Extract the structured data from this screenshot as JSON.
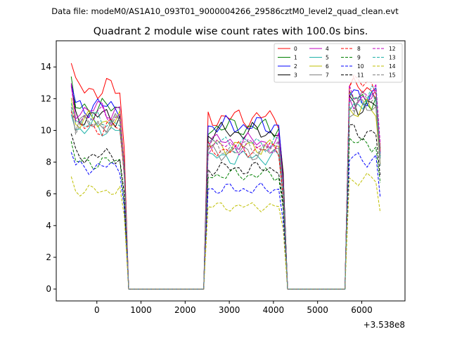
{
  "header": {
    "file_label": "Data file: modeM0/AS1A10_093T01_9000004266_29586cztM0_level2_quad_clean.evt"
  },
  "chart_data": {
    "type": "line",
    "title": "Quadrant 2 module wise count rates with 100.0s bins.",
    "xlabel": "",
    "ylabel": "",
    "x_offset_label": "+3.538e8",
    "xlim": [
      -920,
      6980
    ],
    "ylim": [
      -0.75,
      15.65
    ],
    "x_ticks": [
      0,
      1000,
      2000,
      3000,
      4000,
      5000,
      6000
    ],
    "y_ticks": [
      0,
      2,
      4,
      6,
      8,
      10,
      12,
      14
    ],
    "x_tick_labels": [
      "0",
      "1000",
      "2000",
      "3000",
      "4000",
      "5000",
      "6000"
    ],
    "y_tick_labels": [
      "0",
      "2",
      "4",
      "6",
      "8",
      "10",
      "12",
      "14"
    ],
    "grid": false,
    "legend_position": "top-right",
    "segments": [
      {
        "start": -580,
        "end": 620
      },
      {
        "start": 2450,
        "end": 4250
      },
      {
        "start": 5640,
        "end": 6440
      }
    ],
    "series": [
      {
        "name": "0",
        "color": "#ff0000",
        "dash": "solid",
        "levels": [
          12.6,
          10.8,
          12.6
        ]
      },
      {
        "name": "1",
        "color": "#008000",
        "dash": "solid",
        "levels": [
          11.4,
          10.2,
          12.0
        ]
      },
      {
        "name": "2",
        "color": "#0000ff",
        "dash": "solid",
        "levels": [
          11.5,
          10.3,
          12.2
        ]
      },
      {
        "name": "3",
        "color": "#000000",
        "dash": "solid",
        "levels": [
          10.9,
          9.9,
          11.6
        ]
      },
      {
        "name": "4",
        "color": "#bf00bf",
        "dash": "solid",
        "levels": [
          11.3,
          9.3,
          12.0
        ]
      },
      {
        "name": "5",
        "color": "#20b2aa",
        "dash": "solid",
        "levels": [
          10.1,
          8.3,
          11.7
        ]
      },
      {
        "name": "6",
        "color": "#bfbf00",
        "dash": "solid",
        "levels": [
          10.6,
          9.0,
          11.3
        ]
      },
      {
        "name": "7",
        "color": "#808080",
        "dash": "solid",
        "levels": [
          10.4,
          8.6,
          11.4
        ]
      },
      {
        "name": "8",
        "color": "#ff0000",
        "dash": "dashed",
        "levels": [
          10.2,
          8.8,
          12.9
        ]
      },
      {
        "name": "9",
        "color": "#008000",
        "dash": "dashed",
        "levels": [
          8.0,
          7.2,
          9.2
        ]
      },
      {
        "name": "10",
        "color": "#0000ff",
        "dash": "dashed",
        "levels": [
          7.7,
          6.3,
          8.2
        ]
      },
      {
        "name": "11",
        "color": "#000000",
        "dash": "dashed",
        "levels": [
          8.4,
          7.6,
          9.9
        ]
      },
      {
        "name": "12",
        "color": "#bf00bf",
        "dash": "dashed",
        "levels": [
          10.9,
          9.0,
          12.4
        ]
      },
      {
        "name": "13",
        "color": "#20b2aa",
        "dash": "dashed",
        "levels": [
          10.6,
          9.2,
          12.1
        ]
      },
      {
        "name": "14",
        "color": "#bfbf00",
        "dash": "dashed",
        "levels": [
          6.2,
          5.2,
          6.9
        ]
      },
      {
        "name": "15",
        "color": "#808080",
        "dash": "dashed",
        "levels": [
          10.4,
          8.9,
          11.9
        ]
      }
    ]
  }
}
